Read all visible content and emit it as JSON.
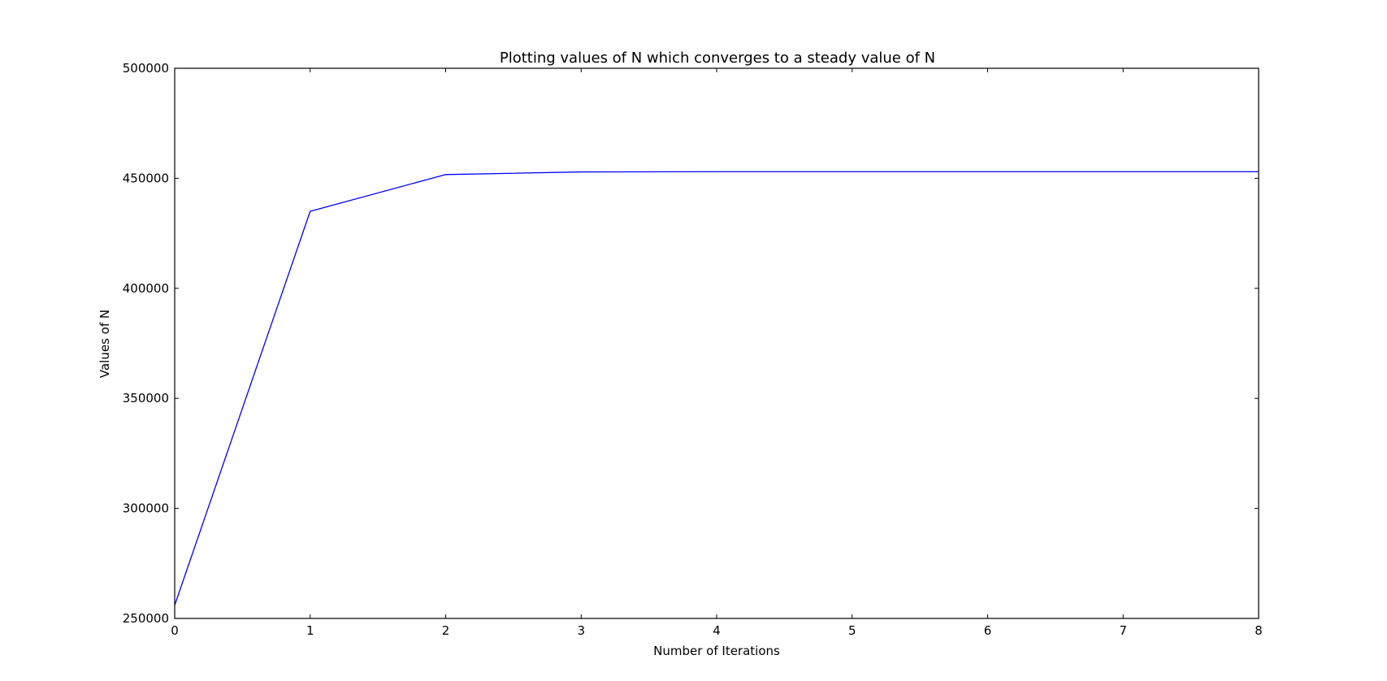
{
  "chart_data": {
    "type": "line",
    "title": "Plotting values of N which converges to a steady value of N",
    "xlabel": "Number of Iterations",
    "ylabel": "Values of N",
    "xlim": [
      0,
      8
    ],
    "ylim": [
      250000,
      500000
    ],
    "xticks": [
      "0",
      "1",
      "2",
      "3",
      "4",
      "5",
      "6",
      "7",
      "8"
    ],
    "yticks": [
      "250000",
      "300000",
      "350000",
      "400000",
      "450000",
      "500000"
    ],
    "grid": false,
    "legend": "none",
    "series": [
      {
        "color": "#0000ff",
        "x": [
          0,
          1,
          2,
          3,
          4,
          5,
          6,
          7,
          8
        ],
        "values": [
          256000,
          435000,
          451700,
          452900,
          453000,
          453000,
          453000,
          453000,
          453000
        ]
      }
    ]
  }
}
